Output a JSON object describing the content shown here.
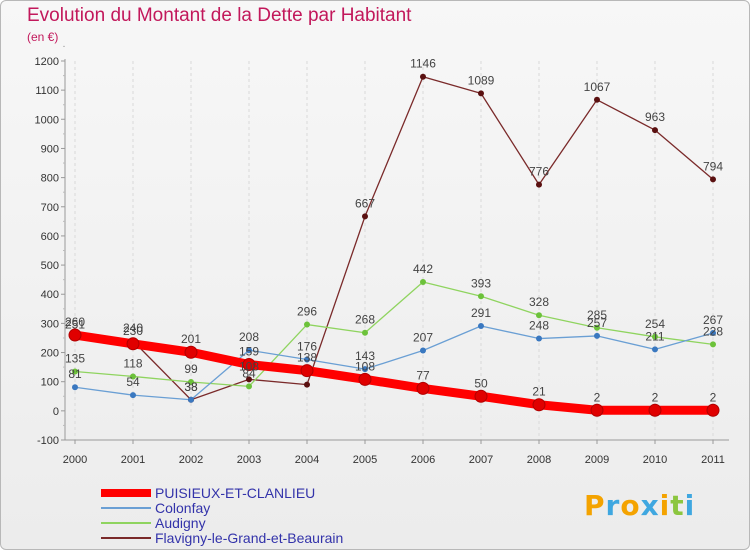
{
  "chart_data": {
    "type": "line",
    "title": "Evolution du Montant de la Dette par Habitant",
    "subtitle": "(en €)",
    "x": [
      "2000",
      "2001",
      "2002",
      "2003",
      "2004",
      "2005",
      "2006",
      "2007",
      "2008",
      "2009",
      "2010",
      "2011"
    ],
    "yticks": [
      "-100",
      "0",
      "100",
      "200",
      "300",
      "400",
      "500",
      "600",
      "700",
      "800",
      "900",
      "1000",
      "1100",
      "1200"
    ],
    "ylim": [
      -100,
      1200
    ],
    "grid": "vertical dashed",
    "legend_position": "bottom-left",
    "series": [
      {
        "name": "PUISIEUX-ET-CLANLIEU",
        "color": "#ff0000",
        "point_color": "#e00000",
        "width": 9,
        "values": [
          260,
          230,
          201,
          159,
          138,
          108,
          77,
          50,
          21,
          2,
          2,
          2
        ],
        "labels": [
          "260",
          "230",
          "201",
          "159",
          "138",
          "108",
          "77",
          "50",
          "21",
          "2",
          "2",
          "2"
        ]
      },
      {
        "name": "Colonfay",
        "color": "#6a9fd4",
        "point_color": "#3a78c0",
        "width": 1.3,
        "values": [
          81,
          54,
          38,
          208,
          176,
          143,
          207,
          291,
          248,
          257,
          211,
          267
        ],
        "labels": [
          "81",
          "54",
          "38",
          "208",
          "176",
          "143",
          "207",
          "291",
          "248",
          "257",
          "211",
          "267"
        ]
      },
      {
        "name": "Audigny",
        "color": "#8fd45f",
        "point_color": "#6cc23a",
        "width": 1.3,
        "values": [
          135,
          118,
          99,
          84,
          296,
          268,
          442,
          393,
          328,
          285,
          254,
          228
        ],
        "labels": [
          "135",
          "118",
          "99",
          "84",
          "296",
          "268",
          "442",
          "393",
          "328",
          "285",
          "254",
          "228"
        ]
      },
      {
        "name": "Flavigny-le-Grand-et-Beaurain",
        "color": "#7a2a2a",
        "point_color": "#5a1010",
        "width": 1.3,
        "values": [
          251,
          240,
          38,
          108,
          90,
          667,
          1146,
          1089,
          776,
          1067,
          963,
          794
        ],
        "labels": [
          "251",
          "240",
          "38",
          "108",
          "",
          "667",
          "1146",
          "1089",
          "776",
          "1067",
          "963",
          "794"
        ]
      }
    ]
  },
  "brand": {
    "letters": [
      "P",
      "r",
      "o",
      "x",
      "i",
      "t",
      "i"
    ],
    "colors": [
      "#f4a300",
      "#3fa7e0",
      "#f4a300",
      "#3fa7e0",
      "#f4a300",
      "#8cc63f",
      "#3fa7e0"
    ]
  }
}
